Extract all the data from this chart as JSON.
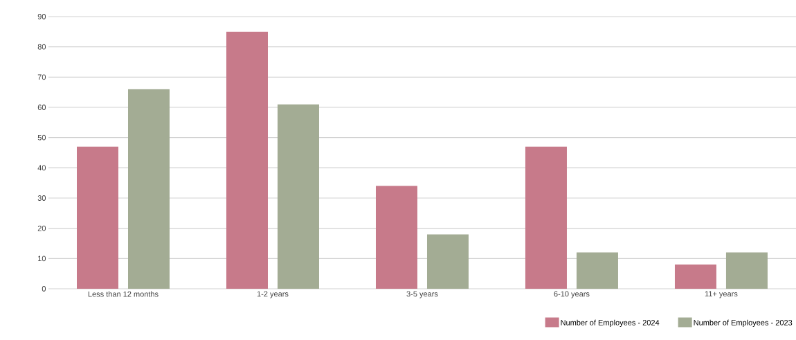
{
  "chart_data": {
    "type": "bar",
    "categories": [
      "Less than 12 months",
      "1-2 years",
      "3-5 years",
      "6-10  years",
      "11+ years"
    ],
    "series": [
      {
        "name": "Number of Employees - 2024",
        "color": "#c77a8a",
        "values": [
          47,
          85,
          34,
          47,
          8
        ]
      },
      {
        "name": "Number of Employees - 2023",
        "color": "#a3ac94",
        "values": [
          66,
          61,
          18,
          12,
          12
        ]
      }
    ],
    "ylim": [
      0,
      90
    ],
    "yticks": [
      0,
      10,
      20,
      30,
      40,
      50,
      60,
      70,
      80,
      90
    ],
    "grid": "y",
    "legend": "bottom right"
  }
}
